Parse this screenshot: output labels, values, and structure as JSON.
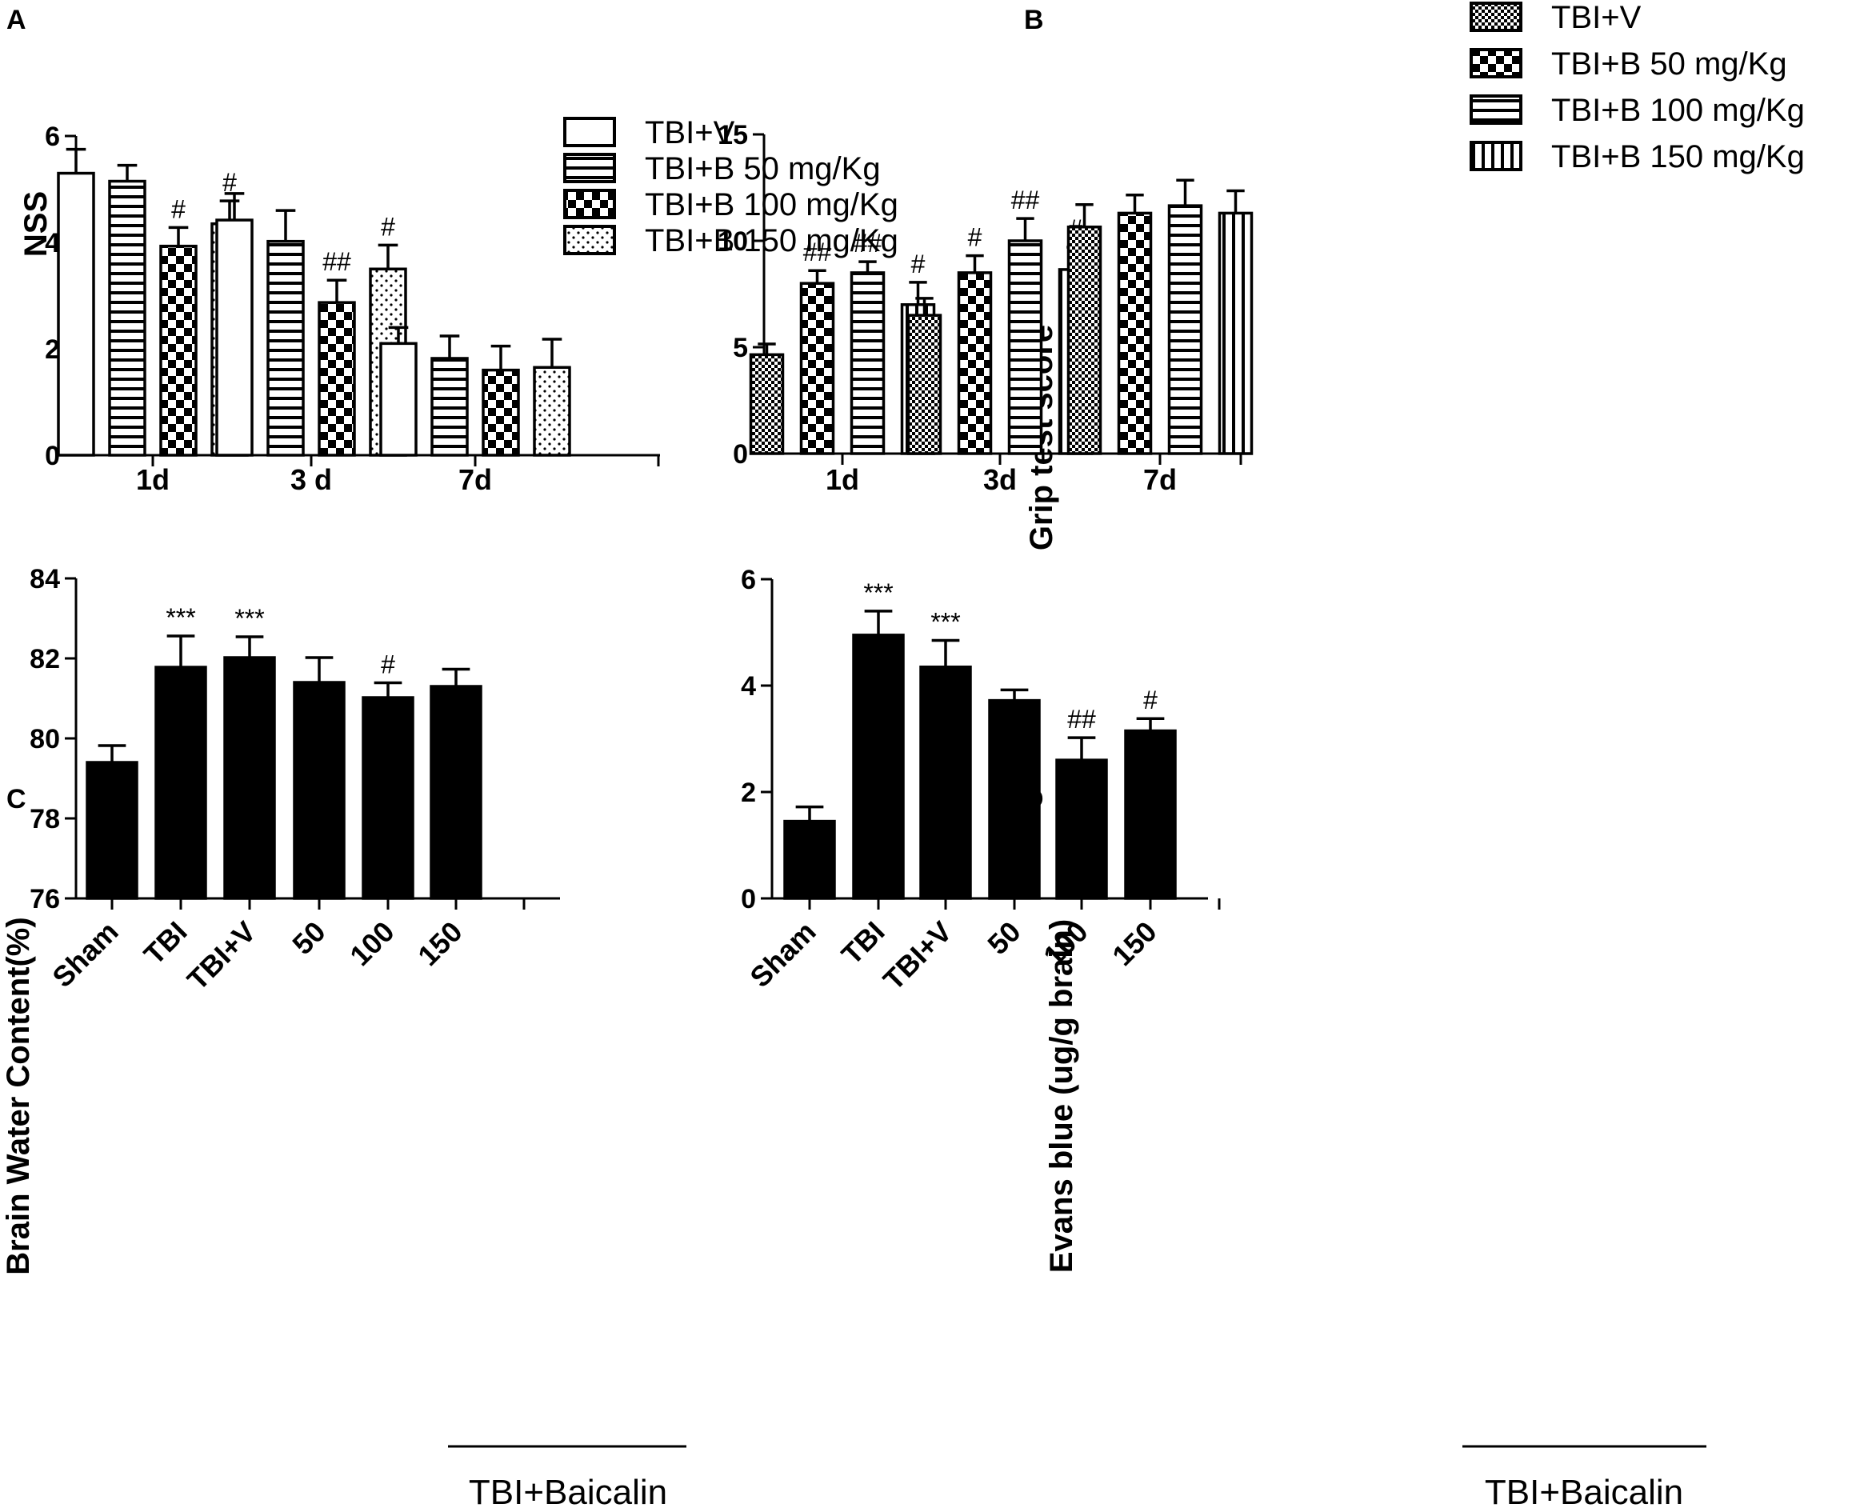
{
  "chart_data": [
    {
      "panel": "A",
      "type": "bar",
      "ylabel": "NSS",
      "xlabel": "",
      "ylim": [
        0,
        6
      ],
      "yticks": [
        0,
        2,
        4,
        6
      ],
      "categories": [
        "1d",
        "3 d",
        "7d"
      ],
      "legend_position": "top-right",
      "series": [
        {
          "name": "TBI+V",
          "pattern": "open",
          "values": [
            5.3,
            4.42,
            2.1
          ],
          "errors": [
            0.45,
            0.5,
            0.3
          ],
          "annotations": [
            "",
            "",
            ""
          ]
        },
        {
          "name": "TBI+B 50 mg/Kg",
          "pattern": "hlines",
          "values": [
            5.15,
            4.02,
            1.82
          ],
          "errors": [
            0.3,
            0.58,
            0.42
          ],
          "annotations": [
            "",
            "",
            ""
          ]
        },
        {
          "name": "TBI+B 100 mg/Kg",
          "pattern": "checker",
          "values": [
            3.93,
            2.87,
            1.6
          ],
          "errors": [
            0.35,
            0.42,
            0.45
          ],
          "annotations": [
            "#",
            "##",
            ""
          ]
        },
        {
          "name": "TBI+B 150 mg/Kg",
          "pattern": "dots",
          "values": [
            4.35,
            3.5,
            1.65
          ],
          "errors": [
            0.43,
            0.45,
            0.53
          ],
          "annotations": [
            "#",
            "#",
            ""
          ]
        }
      ]
    },
    {
      "panel": "B",
      "type": "bar",
      "ylabel": "Grip test score",
      "xlabel": "",
      "ylim": [
        0,
        15
      ],
      "yticks": [
        0,
        5,
        10,
        15
      ],
      "categories": [
        "1d",
        "3d",
        "7d"
      ],
      "legend_position": "top-right",
      "series": [
        {
          "name": "TBI+V",
          "pattern": "fine-checker",
          "values": [
            4.65,
            6.5,
            10.65
          ],
          "errors": [
            0.5,
            0.8,
            1.05
          ],
          "annotations": [
            "",
            "",
            ""
          ]
        },
        {
          "name": "TBI+B 50 mg/Kg",
          "pattern": "checker",
          "values": [
            8.0,
            8.5,
            11.3
          ],
          "errors": [
            0.6,
            0.8,
            0.85
          ],
          "annotations": [
            "##",
            "#",
            ""
          ]
        },
        {
          "name": "TBI+B 100 mg/Kg",
          "pattern": "hlines",
          "values": [
            8.5,
            10.0,
            11.65
          ],
          "errors": [
            0.52,
            1.05,
            1.2
          ],
          "annotations": [
            "##",
            "##",
            ""
          ]
        },
        {
          "name": "TBI+B 150 mg/Kg",
          "pattern": "vlines",
          "values": [
            7.0,
            8.65,
            11.3
          ],
          "errors": [
            1.05,
            1.05,
            1.05
          ],
          "annotations": [
            "#",
            "#",
            ""
          ]
        }
      ]
    },
    {
      "panel": "C",
      "type": "bar",
      "ylabel": "Brain Water Content(%)",
      "xlabel": "",
      "ylim": [
        76,
        84
      ],
      "yticks": [
        76,
        78,
        80,
        82,
        84
      ],
      "categories": [
        "Sham",
        "TBI",
        "TBI+V",
        "50",
        "100",
        "150"
      ],
      "values": [
        79.4,
        81.78,
        82.02,
        81.4,
        81.02,
        81.3
      ],
      "errors": [
        0.42,
        0.78,
        0.52,
        0.62,
        0.37,
        0.43
      ],
      "annotations": [
        "",
        "***",
        "***",
        "",
        "#",
        ""
      ],
      "group_label": "TBI+Baicalin"
    },
    {
      "panel": "D",
      "type": "bar",
      "ylabel": "Evans blue (ug/g brain)",
      "xlabel": "",
      "ylim": [
        0,
        6
      ],
      "yticks": [
        0,
        2,
        4,
        6
      ],
      "categories": [
        "Sham",
        "TBI",
        "TBI+V",
        "50",
        "100",
        "150"
      ],
      "values": [
        1.45,
        4.95,
        4.35,
        3.72,
        2.6,
        3.15
      ],
      "errors": [
        0.27,
        0.45,
        0.5,
        0.2,
        0.42,
        0.23
      ],
      "annotations": [
        "",
        "***",
        "***",
        "",
        "##",
        "#"
      ],
      "group_label": "TBI+Baicalin"
    }
  ]
}
